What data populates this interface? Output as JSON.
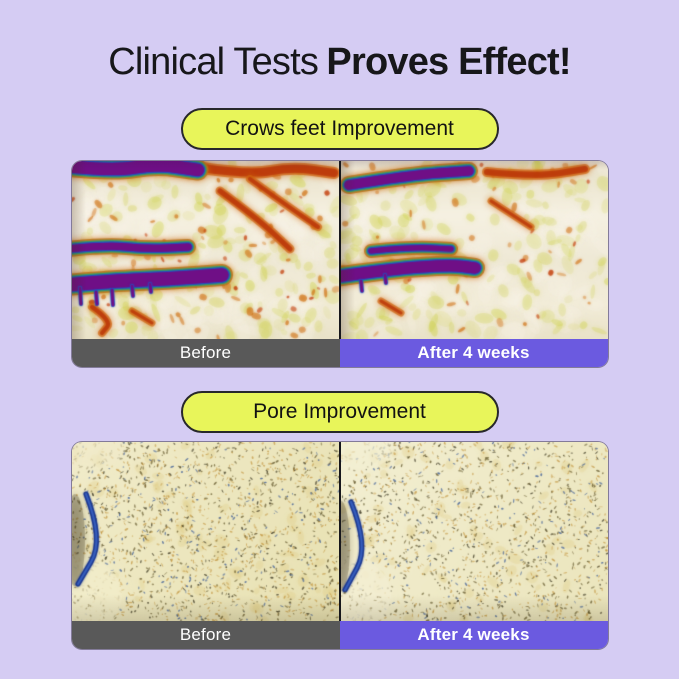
{
  "title": {
    "regular": "Clinical Tests",
    "bold": "Proves Effect!"
  },
  "sections": [
    {
      "badge": "Crows feet Improvement",
      "before_label": "Before",
      "after_label": "After 4 weeks"
    },
    {
      "badge": "Pore Improvement",
      "before_label": "Before",
      "after_label": "After 4 weeks"
    }
  ],
  "colors": {
    "background": "#d5ccf3",
    "badge_bg": "#e8f55a",
    "badge_border": "#27272b",
    "before_bar": "#595959",
    "after_bar": "#6b5ae0",
    "title_text": "#17171a",
    "bar_text": "#ffffff"
  }
}
